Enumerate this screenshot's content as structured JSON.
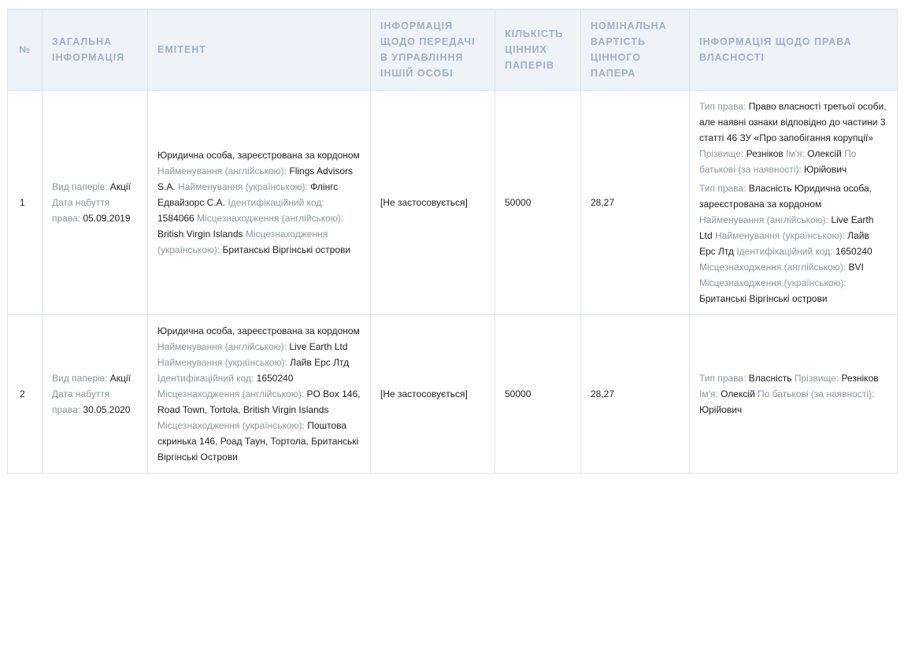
{
  "headers": [
    "№",
    "Загальна інформація",
    "Емітент",
    "Інформація щодо передачі в управління іншій особі",
    "Кількість цінних паперів",
    "Номінальна вартість цінного папера",
    "Інформація щодо права власності"
  ],
  "rows": [
    {
      "num": "1",
      "general": [
        [
          {
            "label": "Вид паперів:",
            "value": "Акції"
          },
          {
            "label": "Дата набуття права:",
            "value": "05.09.2019"
          }
        ]
      ],
      "issuer": [
        [
          {
            "label": "",
            "value": "Юридична особа, зареєстрована за кордоном"
          },
          {
            "label": "Найменування (англійською):",
            "value": "Flings Advisors S.A."
          },
          {
            "label": "Найменування (українською):",
            "value": "Флінгс Едвайзорс С.А."
          },
          {
            "label": "Ідентифікаційний код:",
            "value": "1584066"
          },
          {
            "label": "Місцезнаходження (англійською):",
            "value": "British Virgin Islands"
          },
          {
            "label": "Місцезнаходження (українською):",
            "value": "Британські Віргінські острови"
          }
        ]
      ],
      "transfer": "[Не застосовується]",
      "quantity": "50000",
      "nominal": "28,27",
      "ownership": [
        [
          {
            "label": "Тип права:",
            "value": "Право власності третьої особи, але наявні ознаки відповідно до частини 3 статті 46 ЗУ «Про запобігання корупції»"
          },
          {
            "label": "Прізвище:",
            "value": "Резніков"
          },
          {
            "label": "Ім'я:",
            "value": "Олексій"
          },
          {
            "label": "По батькові (за наявності):",
            "value": "Юрійович"
          }
        ],
        [
          {
            "label": "Тип права:",
            "value": "Власність"
          },
          {
            "label": "",
            "value": "Юридична особа, зареєстрована за кордоном"
          },
          {
            "label": "Найменування (англійською):",
            "value": "Live Earth Ltd"
          },
          {
            "label": "Найменування (українською):",
            "value": "Лайв Ерс Лтд"
          },
          {
            "label": "Ідентифікаційний код:",
            "value": "1650240"
          },
          {
            "label": "Місцезнаходження (англійською):",
            "value": "BVI"
          },
          {
            "label": "Місцезнаходження (українською):",
            "value": "Британські Віргінські острови"
          }
        ]
      ]
    },
    {
      "num": "2",
      "general": [
        [
          {
            "label": "Вид паперів:",
            "value": "Акції"
          },
          {
            "label": "Дата набуття права:",
            "value": "30.05.2020"
          }
        ]
      ],
      "issuer": [
        [
          {
            "label": "",
            "value": "Юридична особа, зареєстрована за кордоном"
          },
          {
            "label": "Найменування (англійською):",
            "value": "Live Earth Ltd"
          },
          {
            "label": "Найменування (українською):",
            "value": "Лайв Ерс Лтд"
          },
          {
            "label": "Ідентифікаційний код:",
            "value": "1650240"
          },
          {
            "label": "Місцезнаходження (англійською):",
            "value": "PO Box 146, Road Town, Tortola, British Virgin Islands"
          },
          {
            "label": "Місцезнаходження (українською):",
            "value": "Поштова скринька 146, Роад Таун, Тортола, Британські Віргінські Острови"
          }
        ]
      ],
      "transfer": "[Не застосовується]",
      "quantity": "50000",
      "nominal": "28,27",
      "ownership": [
        [
          {
            "label": "Тип права:",
            "value": "Власність"
          },
          {
            "label": "Прізвище:",
            "value": "Резніков"
          },
          {
            "label": "Ім'я:",
            "value": "Олексій"
          },
          {
            "label": "По батькові (за наявності):",
            "value": "Юрійович"
          }
        ]
      ]
    }
  ]
}
